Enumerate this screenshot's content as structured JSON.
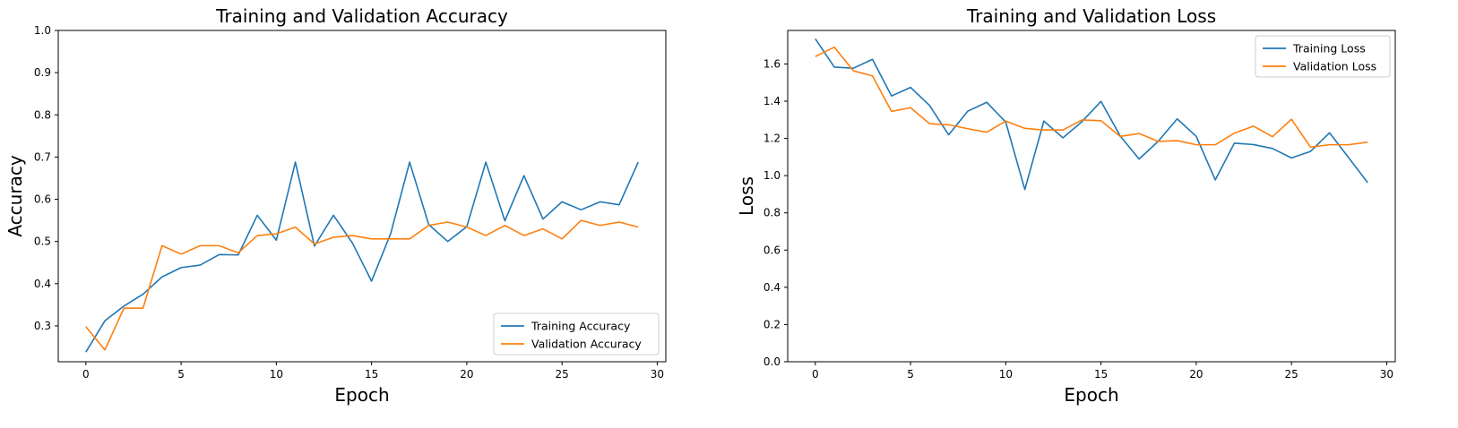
{
  "chart_data": [
    {
      "type": "line",
      "title": "Training and Validation Accuracy",
      "xlabel": "Epoch",
      "ylabel": "Accuracy",
      "xlim": [
        -1.45,
        30.45
      ],
      "ylim": [
        0.215,
        1.0
      ],
      "xticks": [
        0,
        5,
        10,
        15,
        20,
        25,
        30
      ],
      "yticks": [
        0.3,
        0.4,
        0.5,
        0.6,
        0.7,
        0.8,
        0.9,
        1.0
      ],
      "legend_position": "lower-right",
      "x": [
        0,
        1,
        2,
        3,
        4,
        5,
        6,
        7,
        8,
        9,
        10,
        11,
        12,
        13,
        14,
        15,
        16,
        17,
        18,
        19,
        20,
        21,
        22,
        23,
        24,
        25,
        26,
        27,
        28,
        29
      ],
      "series": [
        {
          "name": "Training Accuracy",
          "color": "#1f77b4",
          "values": [
            0.238,
            0.312,
            0.347,
            0.375,
            0.416,
            0.438,
            0.444,
            0.469,
            0.468,
            0.562,
            0.503,
            0.688,
            0.489,
            0.562,
            0.496,
            0.406,
            0.518,
            0.688,
            0.54,
            0.5,
            0.535,
            0.688,
            0.549,
            0.656,
            0.553,
            0.594,
            0.575,
            0.594,
            0.587,
            0.688
          ]
        },
        {
          "name": "Validation Accuracy",
          "color": "#ff7f0e",
          "values": [
            0.298,
            0.243,
            0.342,
            0.342,
            0.49,
            0.47,
            0.49,
            0.49,
            0.473,
            0.514,
            0.518,
            0.534,
            0.494,
            0.51,
            0.514,
            0.506,
            0.506,
            0.506,
            0.538,
            0.546,
            0.534,
            0.514,
            0.538,
            0.514,
            0.53,
            0.506,
            0.55,
            0.538,
            0.546,
            0.534
          ]
        }
      ]
    },
    {
      "type": "line",
      "title": "Training and Validation Loss",
      "xlabel": "Epoch",
      "ylabel": "Loss",
      "xlim": [
        -1.45,
        30.45
      ],
      "ylim": [
        0.0,
        1.78
      ],
      "xticks": [
        0,
        5,
        10,
        15,
        20,
        25,
        30
      ],
      "yticks": [
        0.0,
        0.2,
        0.4,
        0.6,
        0.8,
        1.0,
        1.2,
        1.4,
        1.6
      ],
      "legend_position": "upper-right",
      "x": [
        0,
        1,
        2,
        3,
        4,
        5,
        6,
        7,
        8,
        9,
        10,
        11,
        12,
        13,
        14,
        15,
        16,
        17,
        18,
        19,
        20,
        21,
        22,
        23,
        24,
        25,
        26,
        27,
        28,
        29
      ],
      "series": [
        {
          "name": "Training Loss",
          "color": "#1f77b4",
          "values": [
            1.735,
            1.583,
            1.577,
            1.625,
            1.428,
            1.474,
            1.377,
            1.219,
            1.346,
            1.394,
            1.287,
            0.925,
            1.293,
            1.203,
            1.29,
            1.399,
            1.214,
            1.089,
            1.184,
            1.305,
            1.211,
            0.977,
            1.174,
            1.167,
            1.146,
            1.095,
            1.13,
            1.23,
            1.097,
            0.962
          ]
        },
        {
          "name": "Validation Loss",
          "color": "#ff7f0e",
          "values": [
            1.64,
            1.69,
            1.563,
            1.536,
            1.345,
            1.365,
            1.279,
            1.273,
            1.252,
            1.233,
            1.293,
            1.254,
            1.245,
            1.245,
            1.299,
            1.295,
            1.211,
            1.226,
            1.184,
            1.188,
            1.166,
            1.166,
            1.228,
            1.266,
            1.209,
            1.303,
            1.153,
            1.166,
            1.166,
            1.18
          ]
        }
      ]
    }
  ]
}
